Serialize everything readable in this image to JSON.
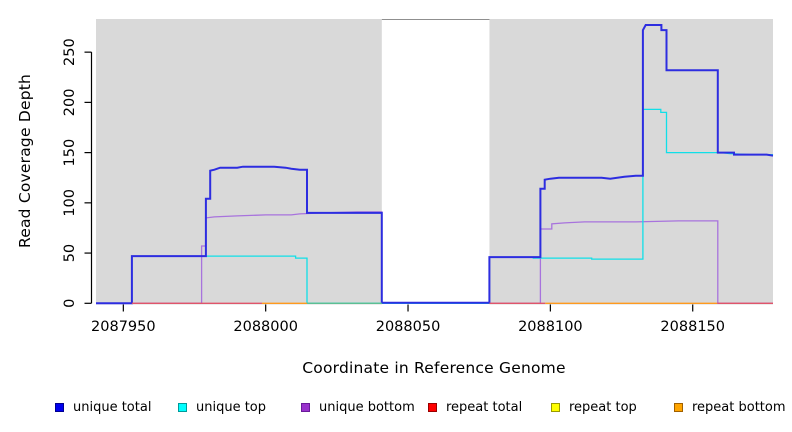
{
  "figure": {
    "x_axis_label": "Coordinate in Reference Genome",
    "y_axis_label": "Read Coverage Depth"
  },
  "legend": {
    "items": [
      {
        "label": "unique total",
        "fill": "#0000ee",
        "border": "#000090"
      },
      {
        "label": "unique top",
        "fill": "#00ffff",
        "border": "#009a9a"
      },
      {
        "label": "unique bottom",
        "fill": "#9932cc",
        "border": "#6a1b9a"
      },
      {
        "label": "repeat total",
        "fill": "#ff0000",
        "border": "#990000"
      },
      {
        "label": "repeat top",
        "fill": "#ffff00",
        "border": "#9a9a00"
      },
      {
        "label": "repeat bottom",
        "fill": "#ffa500",
        "border": "#a06000"
      }
    ]
  },
  "chart_data": {
    "type": "line",
    "step": true,
    "title": "",
    "xlabel": "Coordinate in Reference Genome",
    "ylabel": "Read Coverage Depth",
    "x_domain": [
      2087940.4,
      2088178.2
    ],
    "y_domain": [
      0,
      283
    ],
    "x_ticks": [
      2087950,
      2088000,
      2088050,
      2088100,
      2088150
    ],
    "y_ticks": [
      0,
      50,
      100,
      150,
      200,
      250
    ],
    "plot_bg": "#d9d9d9",
    "grid": false,
    "legend_position": "bottom",
    "gap_region": {
      "x1": 2088040.8,
      "x2": 2088078.6,
      "note": "white no-data band"
    },
    "series": [
      {
        "name": "unique total",
        "color": "#2d2de0",
        "width": 2,
        "points": [
          [
            2087940.4,
            0
          ],
          [
            2087953,
            0
          ],
          [
            2087953,
            47
          ],
          [
            2087979,
            47
          ],
          [
            2087979,
            104
          ],
          [
            2087980.5,
            104
          ],
          [
            2087980.5,
            132
          ],
          [
            2087982,
            133
          ],
          [
            2087984,
            135
          ],
          [
            2087990,
            135
          ],
          [
            2087992,
            136
          ],
          [
            2088003,
            136
          ],
          [
            2088007,
            135
          ],
          [
            2088009,
            134
          ],
          [
            2088012,
            133
          ],
          [
            2088014.5,
            133
          ],
          [
            2088014.5,
            90
          ],
          [
            2088040.8,
            90
          ],
          [
            2088040.8,
            0.5
          ],
          [
            2088078.6,
            0.5
          ],
          [
            2088078.6,
            46
          ],
          [
            2088096.5,
            46
          ],
          [
            2088096.5,
            114
          ],
          [
            2088098,
            114
          ],
          [
            2088098,
            123
          ],
          [
            2088100,
            124
          ],
          [
            2088103,
            125
          ],
          [
            2088118,
            125
          ],
          [
            2088121,
            124
          ],
          [
            2088126,
            126
          ],
          [
            2088130,
            127
          ],
          [
            2088132.5,
            127
          ],
          [
            2088132.5,
            272
          ],
          [
            2088133.5,
            277
          ],
          [
            2088139,
            277
          ],
          [
            2088139,
            272
          ],
          [
            2088140.8,
            272
          ],
          [
            2088140.8,
            232
          ],
          [
            2088158.8,
            232
          ],
          [
            2088158.8,
            150
          ],
          [
            2088164.5,
            150
          ],
          [
            2088164.5,
            148
          ],
          [
            2088176,
            148
          ],
          [
            2088178.2,
            147
          ]
        ]
      },
      {
        "name": "unique top",
        "color": "#10dfe8",
        "width": 1.3,
        "points": [
          [
            2087940.4,
            0
          ],
          [
            2087953,
            0
          ],
          [
            2087953,
            47
          ],
          [
            2088010.5,
            47
          ],
          [
            2088010.5,
            45
          ],
          [
            2088014.5,
            45
          ],
          [
            2088014.5,
            0
          ],
          [
            2088078.6,
            0
          ],
          [
            2088078.6,
            46
          ],
          [
            2088094,
            46
          ],
          [
            2088094,
            45
          ],
          [
            2088114.5,
            45
          ],
          [
            2088114.5,
            44
          ],
          [
            2088132.5,
            44
          ],
          [
            2088132.5,
            193
          ],
          [
            2088138.8,
            193
          ],
          [
            2088138.8,
            190
          ],
          [
            2088140.8,
            190
          ],
          [
            2088140.8,
            150
          ],
          [
            2088160,
            150
          ],
          [
            2088163,
            149
          ],
          [
            2088170,
            148
          ],
          [
            2088178.2,
            148
          ]
        ]
      },
      {
        "name": "unique bottom",
        "color": "#a873dd",
        "width": 1.3,
        "points": [
          [
            2087940.4,
            0
          ],
          [
            2087977.5,
            0
          ],
          [
            2087977.5,
            57
          ],
          [
            2087979,
            57
          ],
          [
            2087979,
            85
          ],
          [
            2087982,
            86
          ],
          [
            2087990,
            87
          ],
          [
            2088000,
            88
          ],
          [
            2088009,
            88
          ],
          [
            2088012,
            89
          ],
          [
            2088020,
            90
          ],
          [
            2088032,
            91
          ],
          [
            2088040.8,
            91
          ],
          [
            2088040.8,
            0
          ],
          [
            2088096.5,
            0
          ],
          [
            2088096.5,
            74
          ],
          [
            2088100.5,
            74
          ],
          [
            2088100.5,
            79
          ],
          [
            2088105,
            80
          ],
          [
            2088112,
            81
          ],
          [
            2088130,
            81
          ],
          [
            2088145,
            82
          ],
          [
            2088158.8,
            82
          ],
          [
            2088158.8,
            0
          ],
          [
            2088178.2,
            0
          ]
        ]
      },
      {
        "name": "repeat total",
        "color": "#ff0000",
        "width": 1.2,
        "render": "baseline-mosaic",
        "points": [
          [
            2087940.4,
            0
          ],
          [
            2088178.2,
            0
          ]
        ]
      },
      {
        "name": "repeat top",
        "color": "#ffff00",
        "width": 1.2,
        "render": "baseline-mosaic",
        "points": [
          [
            2087940.4,
            0
          ],
          [
            2088178.2,
            0
          ]
        ]
      },
      {
        "name": "repeat bottom",
        "color": "#ffa500",
        "width": 1.2,
        "render": "baseline-mosaic",
        "points": [
          [
            2087940.4,
            0
          ],
          [
            2088178.2,
            0
          ]
        ]
      }
    ],
    "baseline_segments": [
      {
        "x1": 2087953,
        "x2": 2087998.7,
        "color": "#e0556a"
      },
      {
        "x1": 2087998.7,
        "x2": 2088014.5,
        "color": "#ff9a1e"
      },
      {
        "x1": 2088014.5,
        "x2": 2088040.8,
        "color": "#5cbf93"
      },
      {
        "x1": 2088078.6,
        "x2": 2088098.2,
        "color": "#e0556a"
      },
      {
        "x1": 2088098.2,
        "x2": 2088158.6,
        "color": "#ff9a1e"
      },
      {
        "x1": 2088158.6,
        "x2": 2088178.2,
        "color": "#e0556a"
      }
    ]
  }
}
